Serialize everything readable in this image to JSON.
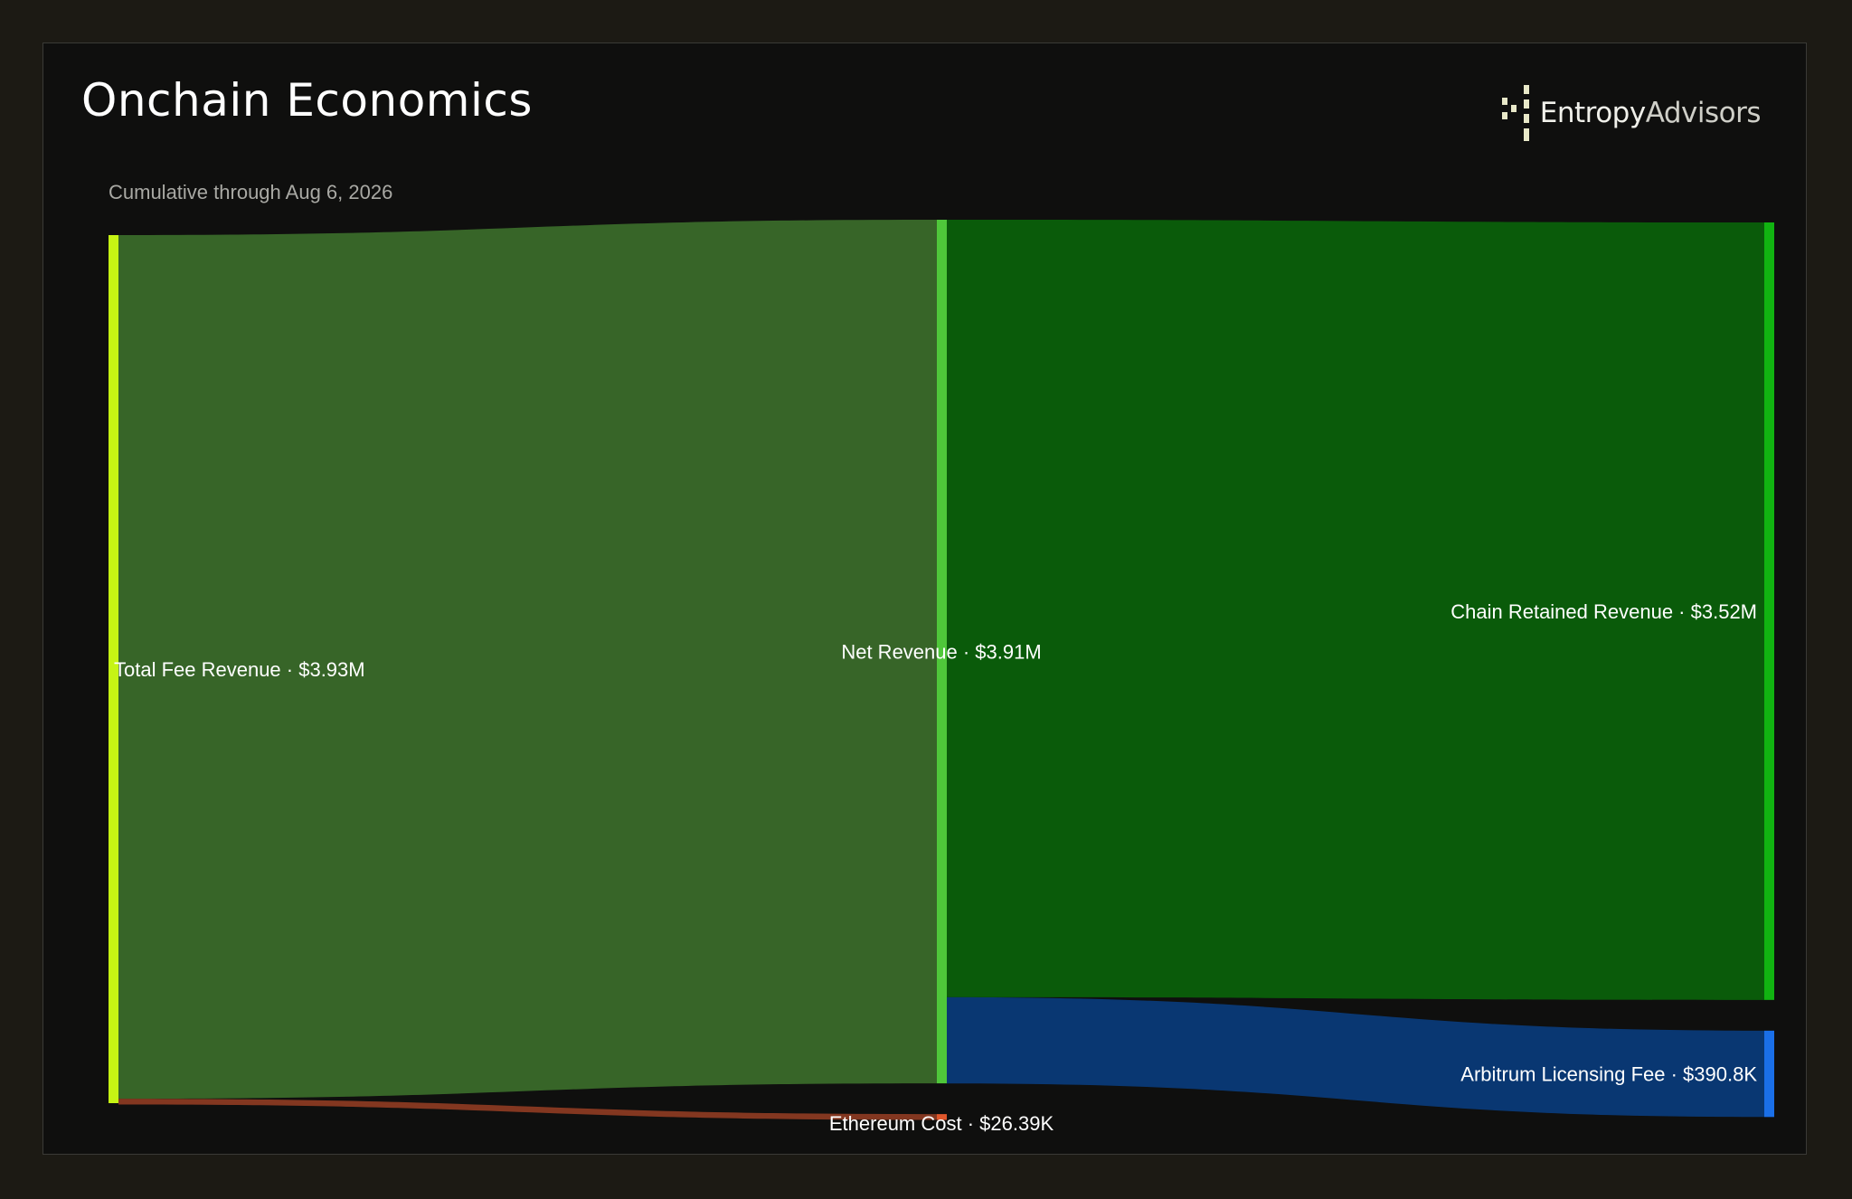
{
  "title": "Onchain Economics",
  "subtitle": "Cumulative through Aug 6, 2026",
  "logo": {
    "word1": "Entropy",
    "word2": "Advisors",
    "icon": "entropy-advisors-logo-icon"
  },
  "chart_data": {
    "type": "sankey",
    "units": "USD",
    "nodes": [
      {
        "id": "total_fee",
        "name": "Total Fee Revenue",
        "value_label": "$3.93M",
        "value": 3930000,
        "column": 0,
        "color": "#c6f414"
      },
      {
        "id": "net_revenue",
        "name": "Net Revenue",
        "value_label": "$3.91M",
        "value": 3910000,
        "column": 1,
        "color": "#4fc73a"
      },
      {
        "id": "eth_cost",
        "name": "Ethereum Cost",
        "value_label": "$26.39K",
        "value": 26390,
        "column": 1,
        "color": "#e0572b"
      },
      {
        "id": "chain_retained",
        "name": "Chain Retained Revenue",
        "value_label": "$3.52M",
        "value": 3520000,
        "column": 2,
        "color": "#11b311"
      },
      {
        "id": "arb_fee",
        "name": "Arbitrum Licensing Fee",
        "value_label": "$390.8K",
        "value": 390800,
        "column": 2,
        "color": "#1a6fe8"
      }
    ],
    "links": [
      {
        "source": "total_fee",
        "target": "net_revenue",
        "value": 3910000,
        "color": "#3a6a2a"
      },
      {
        "source": "total_fee",
        "target": "eth_cost",
        "value": 26390,
        "color": "#8a3a22"
      },
      {
        "source": "net_revenue",
        "target": "chain_retained",
        "value": 3520000,
        "color": "#0b600b"
      },
      {
        "source": "net_revenue",
        "target": "arb_fee",
        "value": 390800,
        "color": "#0a3a78"
      }
    ]
  }
}
